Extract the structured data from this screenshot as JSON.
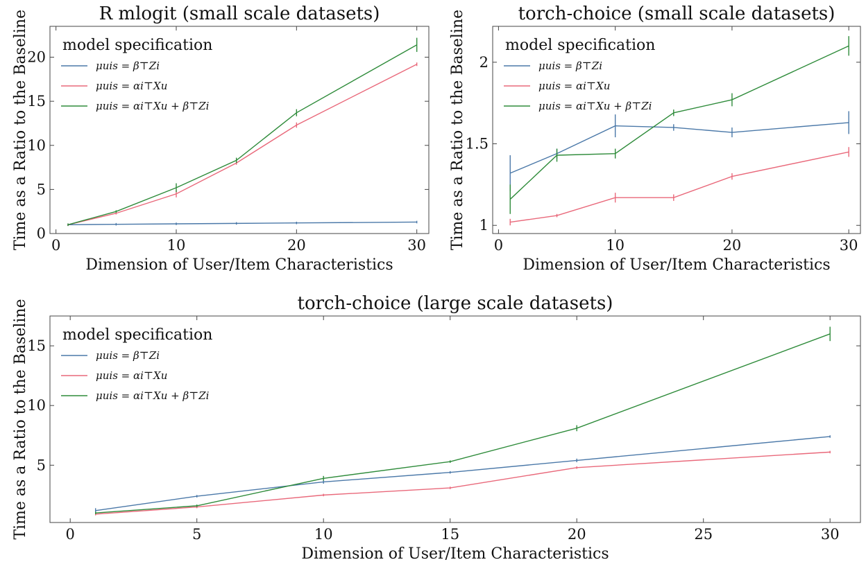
{
  "chart_data": [
    {
      "type": "line",
      "title": "R mlogit (small scale datasets)",
      "xlabel": "Dimension of User/Item Characteristics",
      "ylabel": "Time as a Ratio to the Baseline",
      "xlim": [
        -0.5,
        31
      ],
      "ylim": [
        0,
        23.5
      ],
      "xticks": [
        0,
        10,
        20,
        30
      ],
      "yticks": [
        0,
        5,
        10,
        15,
        20
      ],
      "legend": {
        "title": "model specification",
        "placement": "top-left"
      },
      "x": [
        1,
        5,
        10,
        15,
        20,
        30
      ],
      "series": [
        {
          "name": "μuis = β⊤Zi",
          "color": "#4a78a8",
          "values": [
            1.0,
            1.05,
            1.1,
            1.15,
            1.2,
            1.3
          ],
          "errors": [
            0,
            0,
            0,
            0,
            0,
            0
          ]
        },
        {
          "name": "μuis = αi⊤Xu",
          "color": "#e9687a",
          "values": [
            1.0,
            2.3,
            4.5,
            8.0,
            12.3,
            19.2
          ],
          "errors": [
            0,
            0,
            0.4,
            0.2,
            0.3,
            0.2
          ]
        },
        {
          "name": "μuis = αi⊤Xu + β⊤Zi",
          "color": "#2e8b3a",
          "values": [
            1.0,
            2.5,
            5.2,
            8.3,
            13.7,
            21.4
          ],
          "errors": [
            0,
            0,
            0.5,
            0.3,
            0.4,
            0.8
          ]
        }
      ]
    },
    {
      "type": "line",
      "title": "torch-choice (small scale datasets)",
      "xlabel": "Dimension of User/Item Characteristics",
      "ylabel": "Time as a Ratio to the Baseline",
      "xlim": [
        -0.5,
        31
      ],
      "ylim": [
        0.95,
        2.22
      ],
      "xticks": [
        0,
        10,
        20,
        30
      ],
      "yticks": [
        1.0,
        1.5,
        2.0
      ],
      "legend": {
        "title": "model specification",
        "placement": "top-left"
      },
      "x": [
        1,
        5,
        10,
        15,
        20,
        30
      ],
      "series": [
        {
          "name": "μuis = β⊤Zi",
          "color": "#4a78a8",
          "values": [
            1.32,
            1.44,
            1.61,
            1.6,
            1.57,
            1.63
          ],
          "errors": [
            0.11,
            0.03,
            0.07,
            0.02,
            0.03,
            0.07
          ]
        },
        {
          "name": "μuis = αi⊤Xu",
          "color": "#e9687a",
          "values": [
            1.02,
            1.06,
            1.17,
            1.17,
            1.3,
            1.45
          ],
          "errors": [
            0.02,
            0.01,
            0.03,
            0.02,
            0.02,
            0.03
          ]
        },
        {
          "name": "μuis = αi⊤Xu + β⊤Zi",
          "color": "#2e8b3a",
          "values": [
            1.16,
            1.43,
            1.44,
            1.69,
            1.77,
            2.1
          ],
          "errors": [
            0.09,
            0.04,
            0.03,
            0.02,
            0.04,
            0.06
          ]
        }
      ]
    },
    {
      "type": "line",
      "title": "torch-choice (large scale datasets)",
      "xlabel": "Dimension of User/Item Characteristics",
      "ylabel": "Time as a Ratio to the Baseline",
      "xlim": [
        -0.8,
        31.2
      ],
      "ylim": [
        0.2,
        17.5
      ],
      "xticks": [
        0,
        5,
        10,
        15,
        20,
        25,
        30
      ],
      "yticks": [
        5,
        10,
        15
      ],
      "legend": {
        "title": "model specification",
        "placement": "top-left"
      },
      "x": [
        1,
        5,
        10,
        15,
        20,
        30
      ],
      "series": [
        {
          "name": "μuis = β⊤Zi",
          "color": "#4a78a8",
          "values": [
            1.2,
            2.4,
            3.6,
            4.4,
            5.4,
            7.4
          ],
          "errors": [
            0.2,
            0.1,
            0.15,
            0.1,
            0.15,
            0.1
          ]
        },
        {
          "name": "μuis = αi⊤Xu",
          "color": "#e9687a",
          "values": [
            0.9,
            1.5,
            2.5,
            3.1,
            4.8,
            6.1
          ],
          "errors": [
            0,
            0,
            0,
            0,
            0,
            0.1
          ]
        },
        {
          "name": "μuis = αi⊤Xu + β⊤Zi",
          "color": "#2e8b3a",
          "values": [
            1.0,
            1.6,
            3.9,
            5.3,
            8.1,
            16.0
          ],
          "errors": [
            0.1,
            0.1,
            0.2,
            0.1,
            0.25,
            0.6
          ]
        }
      ]
    }
  ]
}
